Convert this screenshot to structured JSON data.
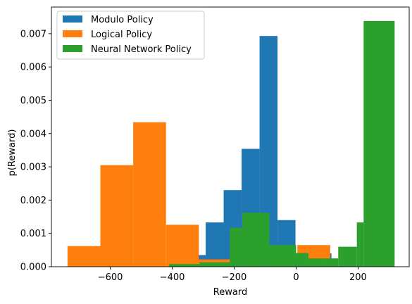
{
  "chart_data": {
    "type": "bar",
    "subtype": "histogram",
    "title": "",
    "xlabel": "Reward",
    "ylabel": "p(Reward)",
    "xlim": [
      -790,
      365
    ],
    "ylim": [
      0,
      0.0078
    ],
    "xticks": [
      -600,
      -400,
      -200,
      0,
      200
    ],
    "xtick_labels": [
      "−600",
      "−400",
      "−200",
      "0",
      "200"
    ],
    "yticks": [
      0,
      0.001,
      0.002,
      0.003,
      0.004,
      0.005,
      0.006,
      0.007
    ],
    "ytick_labels": [
      "0.000",
      "0.001",
      "0.002",
      "0.003",
      "0.004",
      "0.005",
      "0.006",
      "0.007"
    ],
    "grid": false,
    "legend_position": "top-left",
    "series": [
      {
        "name": "Modulo Policy",
        "color": "#1f77b4",
        "bins": [
          {
            "x0": -350,
            "x1": -292,
            "y": 0.00035
          },
          {
            "x0": -292,
            "x1": -234,
            "y": 0.00133
          },
          {
            "x0": -234,
            "x1": -176,
            "y": 0.0023
          },
          {
            "x0": -176,
            "x1": -118,
            "y": 0.00354
          },
          {
            "x0": -118,
            "x1": -60,
            "y": 0.00693
          },
          {
            "x0": -60,
            "x1": -2,
            "y": 0.0014
          },
          {
            "x0": -2,
            "x1": 56,
            "y": 0.0002
          },
          {
            "x0": 56,
            "x1": 114,
            "y": 0.0004
          }
        ]
      },
      {
        "name": "Logical Policy",
        "color": "#ff7f0e",
        "bins": [
          {
            "x0": -738,
            "x1": -632,
            "y": 0.00062
          },
          {
            "x0": -632,
            "x1": -526,
            "y": 0.00305
          },
          {
            "x0": -526,
            "x1": -420,
            "y": 0.00434
          },
          {
            "x0": -420,
            "x1": -314,
            "y": 0.00126
          },
          {
            "x0": -314,
            "x1": -208,
            "y": 0.00022
          },
          {
            "x0": -208,
            "x1": -102,
            "y": 0.0
          },
          {
            "x0": -102,
            "x1": 4,
            "y": 0.0
          },
          {
            "x0": 4,
            "x1": 110,
            "y": 0.00065
          }
        ]
      },
      {
        "name": "Neural Network Policy",
        "color": "#2ca02c",
        "bins": [
          {
            "x0": -410,
            "x1": -312,
            "y": 8e-05
          },
          {
            "x0": -312,
            "x1": -214,
            "y": 0.00013
          },
          {
            "x0": -214,
            "x1": -174,
            "y": 0.00117
          },
          {
            "x0": -174,
            "x1": -86,
            "y": 0.00162
          },
          {
            "x0": -86,
            "x1": 0,
            "y": 0.00065
          },
          {
            "x0": 0,
            "x1": 40,
            "y": 0.00041
          },
          {
            "x0": 40,
            "x1": 84,
            "y": 0.00025
          },
          {
            "x0": 84,
            "x1": 136,
            "y": 0.00025
          },
          {
            "x0": 136,
            "x1": 196,
            "y": 0.0006
          },
          {
            "x0": 196,
            "x1": 218,
            "y": 0.00133
          },
          {
            "x0": 218,
            "x1": 318,
            "y": 0.00738
          }
        ]
      }
    ]
  }
}
